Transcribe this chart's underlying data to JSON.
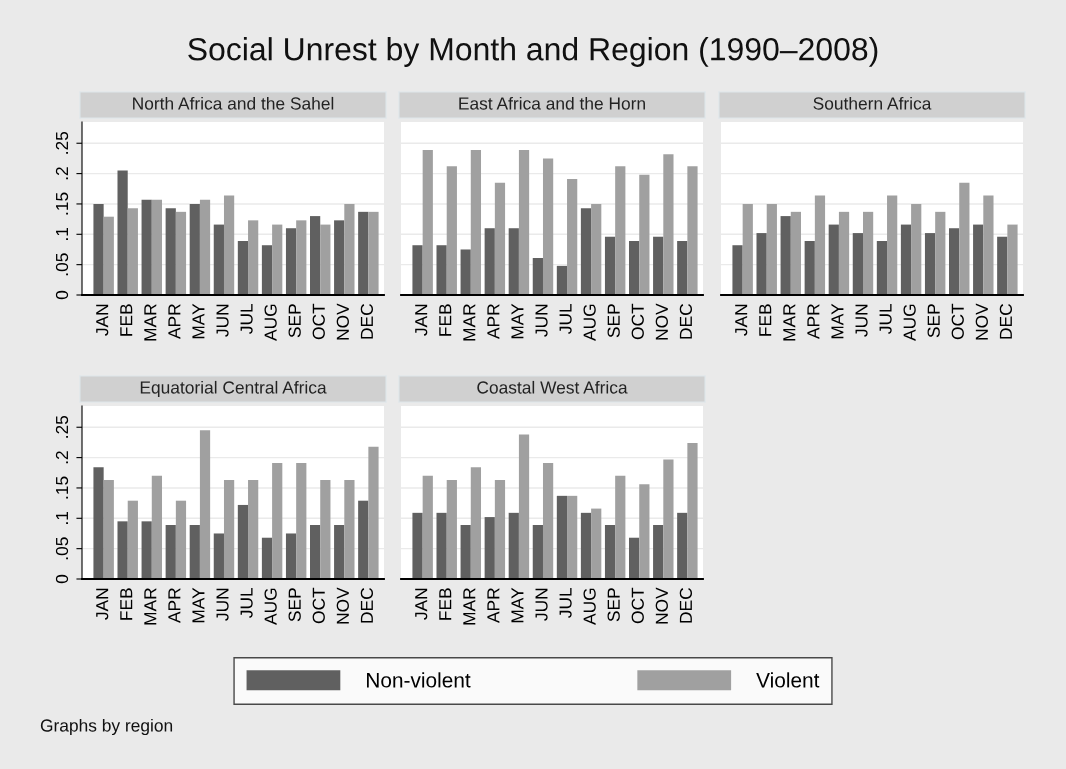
{
  "chart_data": [
    {
      "type": "bar",
      "title": "North Africa and the Sahel",
      "annotations": [
        "Social Unrest by Month and Region (1990–2008)"
      ],
      "categories": [
        "JAN",
        "FEB",
        "MAR",
        "APR",
        "MAY",
        "JUN",
        "JUL",
        "AUG",
        "SEP",
        "OCT",
        "NOV",
        "DEC"
      ],
      "series": [
        {
          "name": "Non-violent",
          "color": "#606060",
          "values": [
            0.15,
            0.205,
            0.157,
            0.143,
            0.15,
            0.116,
            0.089,
            0.082,
            0.11,
            0.13,
            0.123,
            0.137
          ]
        },
        {
          "name": "Violent",
          "color": "#a0a0a0",
          "values": [
            0.129,
            0.143,
            0.157,
            0.137,
            0.157,
            0.164,
            0.123,
            0.116,
            0.123,
            0.116,
            0.15,
            0.137
          ]
        }
      ],
      "ylim": [
        0,
        0.285
      ],
      "yticks": [
        0,
        {
          "value": 0.05,
          "label": ".05"
        },
        {
          "value": 0.1,
          "label": ".1"
        },
        {
          "value": 0.15,
          "label": ".15"
        },
        {
          "value": 0.2,
          "label": ".2"
        },
        {
          "value": 0.25,
          "label": ".25"
        }
      ],
      "grid": "y",
      "legend": "bottom"
    },
    {
      "type": "bar",
      "title": "East Africa and the Horn",
      "categories": [
        "JAN",
        "FEB",
        "MAR",
        "APR",
        "MAY",
        "JUN",
        "JUL",
        "AUG",
        "SEP",
        "OCT",
        "NOV",
        "DEC"
      ],
      "series": [
        {
          "color": "#606060",
          "values": [
            0.082,
            0.082,
            0.075,
            0.11,
            0.11,
            0.061,
            0.048,
            0.143,
            0.096,
            0.089,
            0.096,
            0.089
          ]
        },
        {
          "color": "#a0a0a0",
          "values": [
            0.239,
            0.212,
            0.239,
            0.185,
            0.239,
            0.225,
            0.191,
            0.15,
            0.212,
            0.198,
            0.232,
            0.212
          ]
        }
      ],
      "ylim": [
        0,
        0.285
      ],
      "yticks": [
        {
          "value": 0,
          "label": null
        },
        {
          "value": 0.05,
          "label": null
        },
        {
          "value": 0.1,
          "label": null
        },
        {
          "value": 0.15,
          "label": null
        },
        {
          "value": 0.2,
          "label": null
        },
        {
          "value": 0.25,
          "label": null
        }
      ],
      "tick_labels": "x",
      "grid": "y"
    },
    {
      "type": "bar",
      "title": "Southern Africa",
      "categories": [
        "JAN",
        "FEB",
        "MAR",
        "APR",
        "MAY",
        "JUN",
        "JUL",
        "AUG",
        "SEP",
        "OCT",
        "NOV",
        "DEC"
      ],
      "series": [
        {
          "color": "#606060",
          "values": [
            0.082,
            0.102,
            0.13,
            0.089,
            0.116,
            0.102,
            0.089,
            0.116,
            0.102,
            0.11,
            0.116,
            0.096
          ]
        },
        {
          "color": "#a0a0a0",
          "values": [
            0.15,
            0.15,
            0.137,
            0.164,
            0.137,
            0.137,
            0.164,
            0.15,
            0.137,
            0.185,
            0.164,
            0.116
          ]
        }
      ],
      "ylim": [
        0,
        0.285
      ],
      "yticks": [
        {
          "value": 0,
          "label": null
        },
        {
          "value": 0.05,
          "label": null
        },
        {
          "value": 0.1,
          "label": null
        },
        {
          "value": 0.15,
          "label": null
        },
        {
          "value": 0.2,
          "label": null
        },
        {
          "value": 0.25,
          "label": null
        }
      ],
      "tick_labels": "x",
      "grid": "y"
    },
    {
      "type": "bar",
      "title": "Equatorial Central Africa",
      "categories": [
        "JAN",
        "FEB",
        "MAR",
        "APR",
        "MAY",
        "JUN",
        "JUL",
        "AUG",
        "SEP",
        "OCT",
        "NOV",
        "DEC"
      ],
      "series": [
        {
          "color": "#606060",
          "values": [
            0.184,
            0.095,
            0.095,
            0.089,
            0.089,
            0.075,
            0.122,
            0.068,
            0.075,
            0.089,
            0.089,
            0.129
          ]
        },
        {
          "color": "#a0a0a0",
          "values": [
            0.163,
            0.129,
            0.17,
            0.129,
            0.245,
            0.163,
            0.163,
            0.191,
            0.191,
            0.163,
            0.163,
            0.218
          ]
        }
      ],
      "ylim": [
        0,
        0.285
      ],
      "yticks": [
        0,
        {
          "value": 0.05,
          "label": ".05"
        },
        {
          "value": 0.1,
          "label": ".1"
        },
        {
          "value": 0.15,
          "label": ".15"
        },
        {
          "value": 0.2,
          "label": ".2"
        },
        {
          "value": 0.25,
          "label": ".25"
        }
      ],
      "grid": "y"
    },
    {
      "type": "bar",
      "title": "Coastal West Africa",
      "annotations": [
        "Graphs by region"
      ],
      "categories": [
        "JAN",
        "FEB",
        "MAR",
        "APR",
        "MAY",
        "JUN",
        "JUL",
        "AUG",
        "SEP",
        "OCT",
        "NOV",
        "DEC"
      ],
      "series": [
        {
          "color": "#606060",
          "values": [
            0.109,
            0.109,
            0.089,
            0.102,
            0.109,
            0.089,
            0.137,
            0.109,
            0.089,
            0.068,
            0.089,
            0.109
          ]
        },
        {
          "color": "#a0a0a0",
          "values": [
            0.17,
            0.163,
            0.184,
            0.163,
            0.238,
            0.191,
            0.137,
            0.116,
            0.17,
            0.156,
            0.197,
            0.224
          ]
        }
      ],
      "ylim": [
        0,
        0.285
      ],
      "yticks": [
        {
          "value": 0,
          "label": null
        },
        {
          "value": 0.05,
          "label": null
        },
        {
          "value": 0.1,
          "label": null
        },
        {
          "value": 0.15,
          "label": null
        },
        {
          "value": 0.2,
          "label": null
        },
        {
          "value": 0.25,
          "label": null
        }
      ],
      "tick_labels": "x",
      "grid": "y"
    }
  ]
}
